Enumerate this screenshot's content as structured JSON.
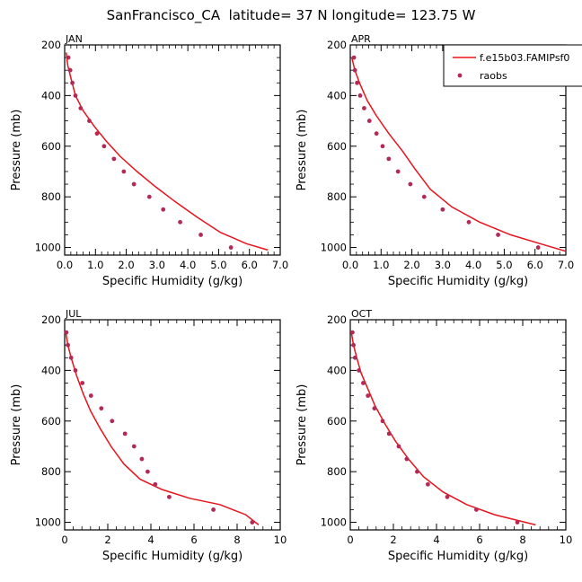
{
  "title": "SanFrancisco_CA  latitude= 37 N longitude= 123.75 W",
  "legend": {
    "model_label": "f.e15b03.FAMIPsf0",
    "obs_label": "raobs",
    "placement": "top-right of APR panel"
  },
  "colors": {
    "model": "#e8131c",
    "obs": "#b22a55",
    "axis": "#000000"
  },
  "chart_data": [
    {
      "type": "line",
      "panel": "JAN",
      "xlabel": "Specific Humidity (g/kg)",
      "ylabel": "Pressure (mb)",
      "xlim": [
        0,
        7
      ],
      "ylim": [
        1030,
        200
      ],
      "xticks": [
        "0.0",
        "1.0",
        "2.0",
        "3.0",
        "4.0",
        "5.0",
        "6.0",
        "7.0"
      ],
      "yticks": [
        "200",
        "400",
        "600",
        "800",
        "1000"
      ],
      "grid": false,
      "series": [
        {
          "name": "f.e15b03.FAMIPsf0",
          "kind": "line",
          "x": [
            0.05,
            0.1,
            0.2,
            0.35,
            0.6,
            0.95,
            1.35,
            1.8,
            2.35,
            2.95,
            3.6,
            4.3,
            5.05,
            5.9,
            6.6
          ],
          "y": [
            230,
            280,
            330,
            400,
            460,
            520,
            580,
            640,
            700,
            760,
            820,
            880,
            940,
            985,
            1010
          ]
        },
        {
          "name": "raobs",
          "kind": "points",
          "x": [
            0.12,
            0.18,
            0.25,
            0.35,
            0.52,
            0.8,
            1.05,
            1.28,
            1.6,
            1.92,
            2.25,
            2.75,
            3.2,
            3.75,
            4.42,
            5.4
          ],
          "y": [
            250,
            300,
            350,
            400,
            450,
            500,
            550,
            600,
            650,
            700,
            750,
            800,
            850,
            900,
            950,
            1000
          ]
        }
      ]
    },
    {
      "type": "line",
      "panel": "APR",
      "xlabel": "Specific Humidity (g/kg)",
      "ylabel": "Pressure (mb)",
      "xlim": [
        0,
        7
      ],
      "ylim": [
        1030,
        200
      ],
      "xticks": [
        "0.0",
        "1.0",
        "2.0",
        "3.0",
        "4.0",
        "5.0",
        "6.0",
        "7.0"
      ],
      "yticks": [
        "200",
        "400",
        "600",
        "800",
        "1000"
      ],
      "grid": false,
      "series": [
        {
          "name": "f.e15b03.FAMIPsf0",
          "kind": "line",
          "x": [
            0.05,
            0.15,
            0.3,
            0.55,
            0.85,
            1.25,
            1.7,
            2.1,
            2.6,
            3.3,
            4.2,
            5.2,
            6.3,
            7.0
          ],
          "y": [
            250,
            300,
            350,
            420,
            480,
            550,
            620,
            690,
            770,
            840,
            900,
            950,
            990,
            1015
          ]
        },
        {
          "name": "raobs",
          "kind": "points",
          "x": [
            0.12,
            0.15,
            0.22,
            0.32,
            0.45,
            0.62,
            0.85,
            1.05,
            1.25,
            1.55,
            1.95,
            2.4,
            3.0,
            3.85,
            4.8,
            6.1
          ],
          "y": [
            250,
            300,
            350,
            400,
            450,
            500,
            550,
            600,
            650,
            700,
            750,
            800,
            850,
            900,
            950,
            1000
          ]
        }
      ]
    },
    {
      "type": "line",
      "panel": "JUL",
      "xlabel": "Specific Humidity (g/kg)",
      "ylabel": "Pressure (mb)",
      "xlim": [
        0,
        10
      ],
      "ylim": [
        1030,
        200
      ],
      "xticks": [
        "0",
        "2",
        "4",
        "6",
        "8",
        "10"
      ],
      "yticks": [
        "200",
        "400",
        "600",
        "800",
        "1000"
      ],
      "grid": false,
      "series": [
        {
          "name": "f.e15b03.FAMIPsf0",
          "kind": "line",
          "x": [
            0.05,
            0.15,
            0.3,
            0.55,
            0.85,
            1.2,
            1.65,
            2.15,
            2.75,
            3.5,
            4.5,
            5.8,
            7.2,
            8.4,
            9.0
          ],
          "y": [
            250,
            300,
            350,
            420,
            490,
            560,
            630,
            700,
            770,
            830,
            870,
            905,
            930,
            970,
            1010
          ]
        },
        {
          "name": "raobs",
          "kind": "points",
          "x": [
            0.08,
            0.15,
            0.3,
            0.5,
            0.82,
            1.22,
            1.7,
            2.2,
            2.8,
            3.22,
            3.58,
            3.85,
            4.2,
            4.85,
            6.9,
            8.7
          ],
          "y": [
            250,
            300,
            350,
            400,
            450,
            500,
            550,
            600,
            650,
            700,
            750,
            800,
            850,
            900,
            950,
            1000
          ]
        }
      ]
    },
    {
      "type": "line",
      "panel": "OCT",
      "xlabel": "Specific Humidity (g/kg)",
      "ylabel": "Pressure (mb)",
      "xlim": [
        0,
        10
      ],
      "ylim": [
        1030,
        200
      ],
      "xticks": [
        "0",
        "2",
        "4",
        "6",
        "8",
        "10"
      ],
      "yticks": [
        "200",
        "400",
        "600",
        "800",
        "1000"
      ],
      "grid": false,
      "series": [
        {
          "name": "f.e15b03.FAMIPsf0",
          "kind": "line",
          "x": [
            0.05,
            0.15,
            0.3,
            0.5,
            0.8,
            1.15,
            1.6,
            2.1,
            2.7,
            3.4,
            4.3,
            5.4,
            6.7,
            8.6
          ],
          "y": [
            250,
            300,
            350,
            410,
            470,
            540,
            610,
            680,
            750,
            820,
            880,
            930,
            970,
            1010
          ]
        },
        {
          "name": "raobs",
          "kind": "points",
          "x": [
            0.1,
            0.15,
            0.22,
            0.4,
            0.6,
            0.82,
            1.12,
            1.5,
            1.8,
            2.25,
            2.62,
            3.1,
            3.6,
            4.5,
            5.85,
            7.75
          ],
          "y": [
            250,
            300,
            350,
            400,
            450,
            500,
            550,
            600,
            650,
            700,
            750,
            800,
            850,
            900,
            950,
            1000
          ]
        }
      ]
    }
  ]
}
